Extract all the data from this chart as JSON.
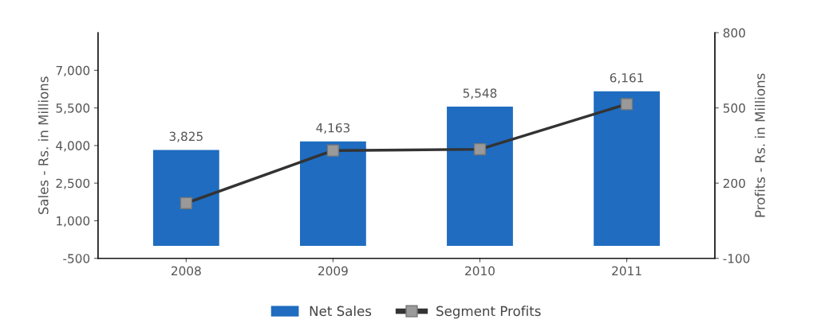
{
  "chart_data": {
    "type": "bar",
    "categories": [
      "2008",
      "2009",
      "2010",
      "2011"
    ],
    "ylabel": "Sales - Rs. in Millions",
    "y2label": "Profits - Rs. in Millions",
    "series": [
      {
        "name": "Net Sales",
        "color": "#1f6cc0",
        "values": [
          3825,
          4163,
          5548,
          6161
        ],
        "value_labels": [
          "3,825",
          "4,163",
          "5,548",
          "6,161"
        ]
      },
      {
        "name": "Segment Profits",
        "type": "line",
        "axis": "y2",
        "color": "#333333",
        "marker": "square",
        "values": [
          120,
          330,
          335,
          515
        ]
      }
    ],
    "ylim": [
      -500,
      8500
    ],
    "yticks": [
      {
        "value": -500,
        "label": "-500"
      },
      {
        "value": 1000,
        "label": "1,000"
      },
      {
        "value": 2500,
        "label": "2,500"
      },
      {
        "value": 4000,
        "label": "4,000"
      },
      {
        "value": 5500,
        "label": "5,500"
      },
      {
        "value": 7000,
        "label": "7,000"
      }
    ],
    "y2lim": [
      -100,
      800
    ],
    "y2ticks": [
      -100,
      200,
      500,
      800
    ],
    "grid": false,
    "legend": "bottom"
  }
}
